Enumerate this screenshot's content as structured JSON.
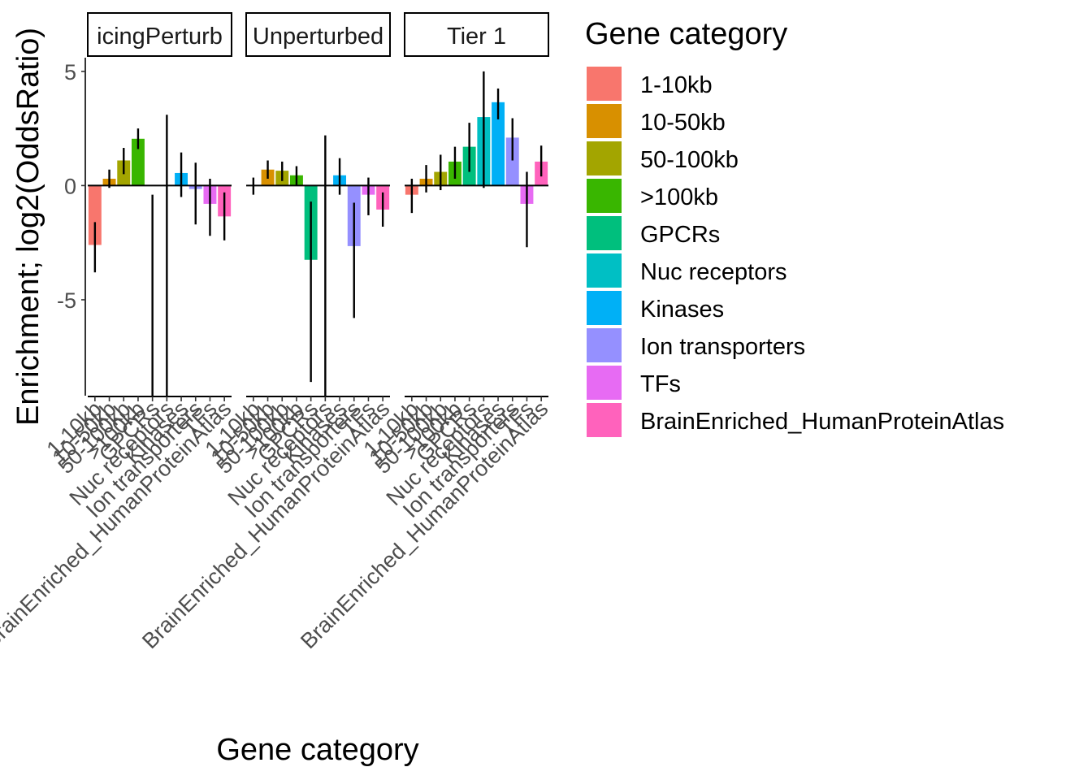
{
  "chart_data": {
    "type": "bar",
    "xlabel": "Gene category",
    "ylabel": "Enrichment; log2(OddsRatio)",
    "ylim": [
      -9.2,
      5.6
    ],
    "yticks": [
      5,
      0,
      -5
    ],
    "ytick_labels": [
      "5",
      "0",
      "-5"
    ],
    "categories": [
      "1-10kb",
      "10-50kb",
      "50-100kb",
      ">100kb",
      "GPCRs",
      "Nuc receptors",
      "Kinases",
      "Ion transporters",
      "TFs",
      "BrainEnriched_HumanProteinAtlas"
    ],
    "colors": [
      "#F8766D",
      "#D89000",
      "#A3A500",
      "#39B600",
      "#00BF7D",
      "#00BFC4",
      "#00B0F6",
      "#9590FF",
      "#E76BF3",
      "#FF62BC"
    ],
    "legend": {
      "title": "Gene category",
      "position": "right",
      "entries": [
        "1-10kb",
        "10-50kb",
        "50-100kb",
        ">100kb",
        "GPCRs",
        "Nuc receptors",
        "Kinases",
        "Ion transporters",
        "TFs",
        "BrainEnriched_HumanProteinAtlas"
      ]
    },
    "facets": [
      {
        "label": "icingPerturb",
        "values": [
          -2.6,
          0.3,
          1.1,
          2.05,
          null,
          null,
          0.55,
          -0.15,
          -0.8,
          -1.35
        ],
        "err_low": [
          -3.8,
          -0.1,
          0.5,
          1.6,
          -9.2,
          -9.2,
          -0.5,
          -1.7,
          -2.2,
          -2.4
        ],
        "err_high": [
          -1.6,
          0.7,
          1.65,
          2.5,
          -0.4,
          3.1,
          1.45,
          1.0,
          0.3,
          -0.3
        ]
      },
      {
        "label": "Unperturbed",
        "values": [
          null,
          0.7,
          0.65,
          0.45,
          -3.25,
          null,
          0.45,
          -2.65,
          -0.4,
          -1.05
        ],
        "err_low": [
          -0.4,
          0.3,
          0.2,
          0.0,
          -8.6,
          -9.2,
          -0.4,
          -5.8,
          -1.3,
          -1.8
        ],
        "err_high": [
          0.35,
          1.1,
          1.05,
          0.85,
          -0.7,
          2.2,
          1.2,
          -0.75,
          0.35,
          -0.3
        ]
      },
      {
        "label": "Tier 1",
        "values": [
          -0.4,
          0.3,
          0.6,
          1.05,
          1.7,
          3.0,
          3.65,
          2.1,
          -0.8,
          1.05
        ],
        "err_low": [
          -1.2,
          -0.3,
          -0.2,
          0.3,
          0.6,
          -0.1,
          2.9,
          1.1,
          -2.7,
          0.4
        ],
        "err_high": [
          0.3,
          0.9,
          1.35,
          1.7,
          2.75,
          5.0,
          4.25,
          2.95,
          0.6,
          1.75
        ]
      }
    ],
    "grid": false
  }
}
